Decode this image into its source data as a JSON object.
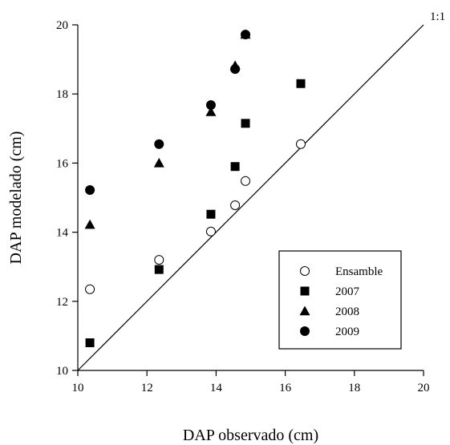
{
  "chart_data": {
    "type": "scatter",
    "xlabel": "DAP observado (cm)",
    "ylabel": "DAP modelado (cm)",
    "xlim": [
      10,
      20
    ],
    "ylim": [
      10,
      20
    ],
    "xticks": [
      10,
      12,
      14,
      16,
      18,
      20
    ],
    "yticks": [
      10,
      12,
      14,
      16,
      18,
      20
    ],
    "grid": false,
    "legend_position": "bottom-right",
    "reference_line": {
      "label": "1:1",
      "x": [
        10,
        20
      ],
      "y": [
        10,
        20
      ]
    },
    "series": [
      {
        "name": "Ensamble",
        "marker": "circle-open",
        "x": [
          10.35,
          12.35,
          13.85,
          14.55,
          14.85,
          16.45
        ],
        "y": [
          12.35,
          13.2,
          14.02,
          14.78,
          15.48,
          16.55
        ]
      },
      {
        "name": "2007",
        "marker": "square",
        "x": [
          10.35,
          12.35,
          13.85,
          14.55,
          14.85,
          16.45
        ],
        "y": [
          10.8,
          12.92,
          14.52,
          15.9,
          17.15,
          18.3
        ]
      },
      {
        "name": "2008",
        "marker": "triangle",
        "x": [
          10.35,
          12.35,
          13.85,
          14.55,
          14.85
        ],
        "y": [
          14.22,
          16.0,
          17.48,
          18.82,
          19.72
        ]
      },
      {
        "name": "2009",
        "marker": "circle-filled",
        "x": [
          10.35,
          12.35,
          13.85,
          14.55,
          14.85
        ],
        "y": [
          15.22,
          16.55,
          17.68,
          18.72,
          19.72
        ]
      }
    ]
  },
  "colors": {
    "ink": "#000000",
    "background": "#ffffff"
  }
}
